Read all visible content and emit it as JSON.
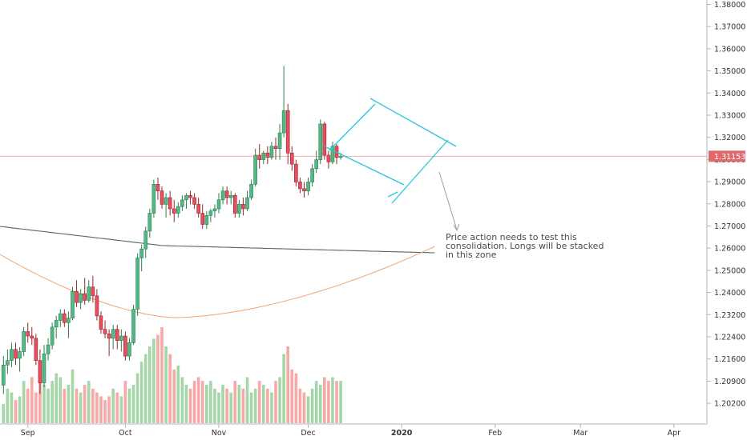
{
  "chart_data": {
    "type": "candlestick",
    "y_axis": {
      "position": "right",
      "ticks": [
        "1.38000",
        "1.37000",
        "1.36000",
        "1.35000",
        "1.34000",
        "1.33000",
        "1.32000",
        "1.31153",
        "1.30000",
        "1.29000",
        "1.28000",
        "1.27000",
        "1.26000",
        "1.25000",
        "1.24000",
        "1.23200",
        "1.22400",
        "1.21600",
        "1.20900",
        "1.20200"
      ]
    },
    "x_axis": {
      "ticks": [
        {
          "label": "Sep",
          "x_bar": 6
        },
        {
          "label": "Oct",
          "x_bar": 30
        },
        {
          "label": "Nov",
          "x_bar": 53
        },
        {
          "label": "Dec",
          "x_bar": 75
        },
        {
          "label": "2020",
          "x_bar": 98
        },
        {
          "label": "Feb",
          "x_bar": 121
        },
        {
          "label": "Mar",
          "x_bar": 142
        },
        {
          "label": "Apr",
          "x_bar": 165
        }
      ],
      "bold_labels": [
        "2020"
      ]
    },
    "last_price": {
      "value": 1.31153,
      "label": "1.31153",
      "color": "#e0696b"
    },
    "colors": {
      "up": "#53b987",
      "down": "#eb4d5c",
      "vol_up": "#a5d6a7",
      "vol_down": "#f7a9a7",
      "ma_dark": "#4f6b62",
      "ma_orange": "#f7a36a",
      "channel": "#26c6da"
    },
    "candles": [
      [
        1.209,
        1.222,
        1.205,
        1.218
      ],
      [
        1.218,
        1.225,
        1.214,
        1.22
      ],
      [
        1.22,
        1.228,
        1.217,
        1.225
      ],
      [
        1.225,
        1.228,
        1.218,
        1.221
      ],
      [
        1.221,
        1.226,
        1.215,
        1.224
      ],
      [
        1.224,
        1.235,
        1.222,
        1.233
      ],
      [
        1.233,
        1.237,
        1.228,
        1.231
      ],
      [
        1.231,
        1.235,
        1.227,
        1.23
      ],
      [
        1.23,
        1.232,
        1.218,
        1.22
      ],
      [
        1.22,
        1.225,
        1.205,
        1.21
      ],
      [
        1.21,
        1.227,
        1.208,
        1.223
      ],
      [
        1.223,
        1.23,
        1.22,
        1.227
      ],
      [
        1.227,
        1.237,
        1.225,
        1.235
      ],
      [
        1.235,
        1.24,
        1.23,
        1.238
      ],
      [
        1.238,
        1.243,
        1.235,
        1.241
      ],
      [
        1.241,
        1.243,
        1.235,
        1.237
      ],
      [
        1.237,
        1.242,
        1.23,
        1.239
      ],
      [
        1.239,
        1.253,
        1.238,
        1.251
      ],
      [
        1.251,
        1.256,
        1.244,
        1.246
      ],
      [
        1.246,
        1.252,
        1.243,
        1.25
      ],
      [
        1.25,
        1.257,
        1.245,
        1.247
      ],
      [
        1.247,
        1.256,
        1.246,
        1.253
      ],
      [
        1.253,
        1.258,
        1.246,
        1.249
      ],
      [
        1.249,
        1.252,
        1.238,
        1.24
      ],
      [
        1.24,
        1.242,
        1.232,
        1.234
      ],
      [
        1.234,
        1.238,
        1.23,
        1.232
      ],
      [
        1.232,
        1.234,
        1.222,
        1.23
      ],
      [
        1.23,
        1.236,
        1.225,
        1.234
      ],
      [
        1.234,
        1.236,
        1.225,
        1.229
      ],
      [
        1.229,
        1.234,
        1.224,
        1.231
      ],
      [
        1.231,
        1.233,
        1.22,
        1.222
      ],
      [
        1.222,
        1.23,
        1.22,
        1.228
      ],
      [
        1.228,
        1.245,
        1.227,
        1.243
      ],
      [
        1.243,
        1.268,
        1.24,
        1.266
      ],
      [
        1.266,
        1.272,
        1.26,
        1.27
      ],
      [
        1.27,
        1.28,
        1.266,
        1.278
      ],
      [
        1.278,
        1.288,
        1.275,
        1.286
      ],
      [
        1.286,
        1.301,
        1.284,
        1.299
      ],
      [
        1.299,
        1.302,
        1.292,
        1.296
      ],
      [
        1.296,
        1.298,
        1.288,
        1.29
      ],
      [
        1.29,
        1.295,
        1.284,
        1.293
      ],
      [
        1.293,
        1.296,
        1.285,
        1.288
      ],
      [
        1.288,
        1.292,
        1.282,
        1.286
      ],
      [
        1.286,
        1.291,
        1.284,
        1.289
      ],
      [
        1.289,
        1.294,
        1.287,
        1.292
      ],
      [
        1.292,
        1.295,
        1.288,
        1.294
      ],
      [
        1.294,
        1.296,
        1.29,
        1.293
      ],
      [
        1.293,
        1.295,
        1.288,
        1.29
      ],
      [
        1.29,
        1.293,
        1.284,
        1.286
      ],
      [
        1.286,
        1.29,
        1.279,
        1.281
      ],
      [
        1.281,
        1.287,
        1.279,
        1.285
      ],
      [
        1.285,
        1.288,
        1.282,
        1.287
      ],
      [
        1.287,
        1.29,
        1.284,
        1.288
      ],
      [
        1.288,
        1.295,
        1.286,
        1.292
      ],
      [
        1.292,
        1.298,
        1.29,
        1.296
      ],
      [
        1.296,
        1.298,
        1.29,
        1.293
      ],
      [
        1.293,
        1.296,
        1.29,
        1.294
      ],
      [
        1.294,
        1.295,
        1.284,
        1.286
      ],
      [
        1.286,
        1.292,
        1.284,
        1.29
      ],
      [
        1.29,
        1.293,
        1.285,
        1.288
      ],
      [
        1.288,
        1.296,
        1.287,
        1.293
      ],
      [
        1.293,
        1.301,
        1.292,
        1.299
      ],
      [
        1.299,
        1.315,
        1.298,
        1.312
      ],
      [
        1.312,
        1.317,
        1.306,
        1.31
      ],
      [
        1.31,
        1.314,
        1.308,
        1.313
      ],
      [
        1.313,
        1.316,
        1.308,
        1.311
      ],
      [
        1.311,
        1.318,
        1.31,
        1.316
      ],
      [
        1.316,
        1.32,
        1.31,
        1.315
      ],
      [
        1.315,
        1.326,
        1.31,
        1.322
      ],
      [
        1.322,
        1.352,
        1.32,
        1.332
      ],
      [
        1.332,
        1.335,
        1.308,
        1.313
      ],
      [
        1.313,
        1.316,
        1.305,
        1.308
      ],
      [
        1.308,
        1.31,
        1.298,
        1.3
      ],
      [
        1.3,
        1.302,
        1.295,
        1.297
      ],
      [
        1.297,
        1.3,
        1.293,
        1.296
      ],
      [
        1.296,
        1.302,
        1.294,
        1.3
      ],
      [
        1.3,
        1.308,
        1.298,
        1.306
      ],
      [
        1.306,
        1.314,
        1.304,
        1.31
      ],
      [
        1.31,
        1.328,
        1.308,
        1.326
      ],
      [
        1.326,
        1.327,
        1.31,
        1.312
      ],
      [
        1.312,
        1.314,
        1.306,
        1.309
      ],
      [
        1.309,
        1.318,
        1.308,
        1.316
      ],
      [
        1.316,
        1.317,
        1.308,
        1.311
      ],
      [
        1.311,
        1.313,
        1.31,
        1.3115
      ]
    ],
    "volumes": [
      5,
      9,
      8,
      6,
      7,
      11,
      9,
      12,
      8,
      15,
      10,
      9,
      11,
      13,
      12,
      9,
      10,
      14,
      9,
      8,
      10,
      11,
      9,
      8,
      7,
      6,
      7,
      9,
      8,
      7,
      11,
      9,
      10,
      13,
      16,
      18,
      20,
      22,
      23,
      25,
      20,
      18,
      14,
      15,
      12,
      10,
      9,
      11,
      12,
      11,
      10,
      11,
      9,
      8,
      10,
      9,
      8,
      11,
      10,
      9,
      12,
      8,
      9,
      11,
      10,
      9,
      8,
      11,
      12,
      18,
      20,
      14,
      13,
      9,
      8,
      7,
      9,
      11,
      10,
      12,
      11,
      12,
      11,
      11
    ]
  },
  "annotation": {
    "lines": [
      "Price action needs to test this",
      "consolidation. Longs will be stacked",
      "in this zone"
    ]
  }
}
